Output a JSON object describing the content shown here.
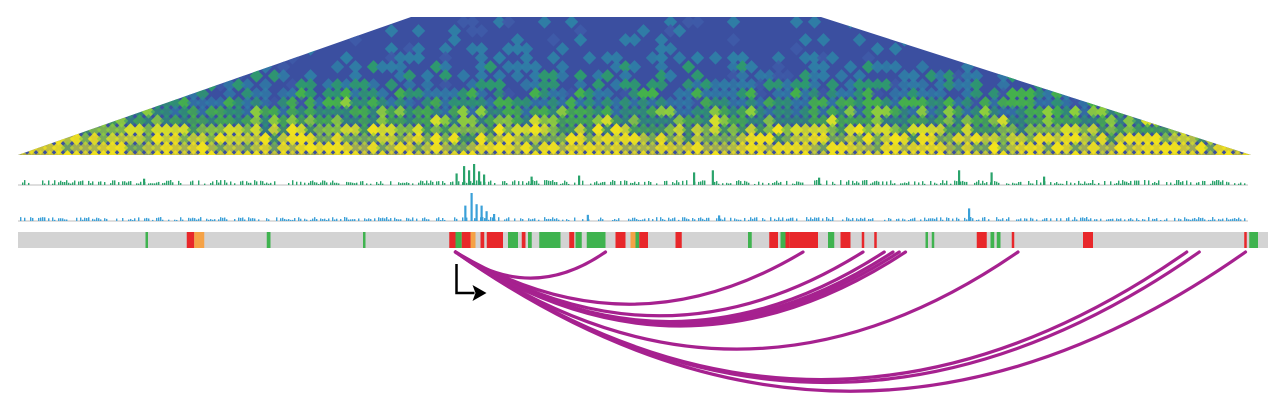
{
  "colors": {
    "background": "#ffffff",
    "heatmap_low": "#3b4fa0",
    "heatmap_mid": "#2e9e5b",
    "heatmap_high": "#f2e31d",
    "track_1": "#2aa36b",
    "track_2": "#3aa0d8",
    "baseline": "#bdbdbd",
    "state_bar_bg": "#d3d3d3",
    "state_active": "#3fb34f",
    "state_repressed": "#e8272a",
    "state_weak": "#f5a246",
    "loop_arc": "#a6218f",
    "tss_arrow": "#000000"
  },
  "icons": {
    "tss_arrow": "bent-arrow-right"
  },
  "tracks": {
    "track_1": "signal-track-green",
    "track_2": "signal-track-blue",
    "state_bar": "chromatin-state-bar"
  },
  "state_segments": [
    {
      "start": 0.102,
      "end": 0.104,
      "state": "active"
    },
    {
      "start": 0.135,
      "end": 0.141,
      "state": "repressed"
    },
    {
      "start": 0.141,
      "end": 0.149,
      "state": "weak"
    },
    {
      "start": 0.199,
      "end": 0.202,
      "state": "active"
    },
    {
      "start": 0.276,
      "end": 0.278,
      "state": "active"
    },
    {
      "start": 0.345,
      "end": 0.35,
      "state": "repressed"
    },
    {
      "start": 0.35,
      "end": 0.355,
      "state": "active"
    },
    {
      "start": 0.355,
      "end": 0.362,
      "state": "repressed"
    },
    {
      "start": 0.362,
      "end": 0.366,
      "state": "weak"
    },
    {
      "start": 0.37,
      "end": 0.373,
      "state": "repressed"
    },
    {
      "start": 0.375,
      "end": 0.388,
      "state": "repressed"
    },
    {
      "start": 0.392,
      "end": 0.4,
      "state": "active"
    },
    {
      "start": 0.403,
      "end": 0.406,
      "state": "repressed"
    },
    {
      "start": 0.408,
      "end": 0.411,
      "state": "active"
    },
    {
      "start": 0.417,
      "end": 0.434,
      "state": "active"
    },
    {
      "start": 0.441,
      "end": 0.445,
      "state": "repressed"
    },
    {
      "start": 0.446,
      "end": 0.451,
      "state": "active"
    },
    {
      "start": 0.455,
      "end": 0.47,
      "state": "active"
    },
    {
      "start": 0.478,
      "end": 0.486,
      "state": "repressed"
    },
    {
      "start": 0.49,
      "end": 0.494,
      "state": "weak"
    },
    {
      "start": 0.494,
      "end": 0.497,
      "state": "active"
    },
    {
      "start": 0.497,
      "end": 0.504,
      "state": "repressed"
    },
    {
      "start": 0.526,
      "end": 0.531,
      "state": "repressed"
    },
    {
      "start": 0.584,
      "end": 0.587,
      "state": "active"
    },
    {
      "start": 0.601,
      "end": 0.608,
      "state": "repressed"
    },
    {
      "start": 0.61,
      "end": 0.614,
      "state": "active"
    },
    {
      "start": 0.614,
      "end": 0.617,
      "state": "repressed"
    },
    {
      "start": 0.617,
      "end": 0.64,
      "state": "repressed"
    },
    {
      "start": 0.648,
      "end": 0.653,
      "state": "active"
    },
    {
      "start": 0.658,
      "end": 0.666,
      "state": "repressed"
    },
    {
      "start": 0.675,
      "end": 0.677,
      "state": "repressed"
    },
    {
      "start": 0.685,
      "end": 0.687,
      "state": "repressed"
    },
    {
      "start": 0.726,
      "end": 0.728,
      "state": "active"
    },
    {
      "start": 0.731,
      "end": 0.733,
      "state": "active"
    },
    {
      "start": 0.767,
      "end": 0.775,
      "state": "repressed"
    },
    {
      "start": 0.778,
      "end": 0.781,
      "state": "active"
    },
    {
      "start": 0.783,
      "end": 0.786,
      "state": "active"
    },
    {
      "start": 0.795,
      "end": 0.797,
      "state": "repressed"
    },
    {
      "start": 0.852,
      "end": 0.86,
      "state": "repressed"
    },
    {
      "start": 0.981,
      "end": 0.983,
      "state": "repressed"
    },
    {
      "start": 0.985,
      "end": 0.992,
      "state": "active"
    }
  ],
  "tss_position": 0.35,
  "loops": [
    {
      "from": 0.35,
      "to": 0.47,
      "depth": 0.18
    },
    {
      "from": 0.35,
      "to": 0.628,
      "depth": 0.36
    },
    {
      "from": 0.35,
      "to": 0.676,
      "depth": 0.44
    },
    {
      "from": 0.35,
      "to": 0.693,
      "depth": 0.48
    },
    {
      "from": 0.35,
      "to": 0.7,
      "depth": 0.49
    },
    {
      "from": 0.35,
      "to": 0.705,
      "depth": 0.5
    },
    {
      "from": 0.35,
      "to": 0.71,
      "depth": 0.51
    },
    {
      "from": 0.35,
      "to": 0.8,
      "depth": 0.67
    },
    {
      "from": 0.35,
      "to": 0.935,
      "depth": 0.88
    },
    {
      "from": 0.35,
      "to": 0.945,
      "depth": 0.9
    },
    {
      "from": 0.35,
      "to": 0.982,
      "depth": 0.96
    }
  ],
  "track_1_peaks": [
    {
      "pos": 0.35,
      "h": 0.55
    },
    {
      "pos": 0.356,
      "h": 0.9
    },
    {
      "pos": 0.36,
      "h": 0.7
    },
    {
      "pos": 0.364,
      "h": 1.0
    },
    {
      "pos": 0.368,
      "h": 0.65
    },
    {
      "pos": 0.372,
      "h": 0.5
    },
    {
      "pos": 0.41,
      "h": 0.4
    },
    {
      "pos": 0.448,
      "h": 0.45
    },
    {
      "pos": 0.54,
      "h": 0.6
    },
    {
      "pos": 0.555,
      "h": 0.7
    },
    {
      "pos": 0.752,
      "h": 0.7
    },
    {
      "pos": 0.778,
      "h": 0.6
    },
    {
      "pos": 0.1,
      "h": 0.3
    },
    {
      "pos": 0.64,
      "h": 0.35
    },
    {
      "pos": 0.82,
      "h": 0.4
    }
  ],
  "track_2_peaks": [
    {
      "pos": 0.357,
      "h": 0.55
    },
    {
      "pos": 0.362,
      "h": 1.0
    },
    {
      "pos": 0.366,
      "h": 0.6
    },
    {
      "pos": 0.37,
      "h": 0.55
    },
    {
      "pos": 0.374,
      "h": 0.35
    },
    {
      "pos": 0.38,
      "h": 0.25
    },
    {
      "pos": 0.455,
      "h": 0.22
    },
    {
      "pos": 0.76,
      "h": 0.45
    },
    {
      "pos": 0.56,
      "h": 0.2
    }
  ]
}
